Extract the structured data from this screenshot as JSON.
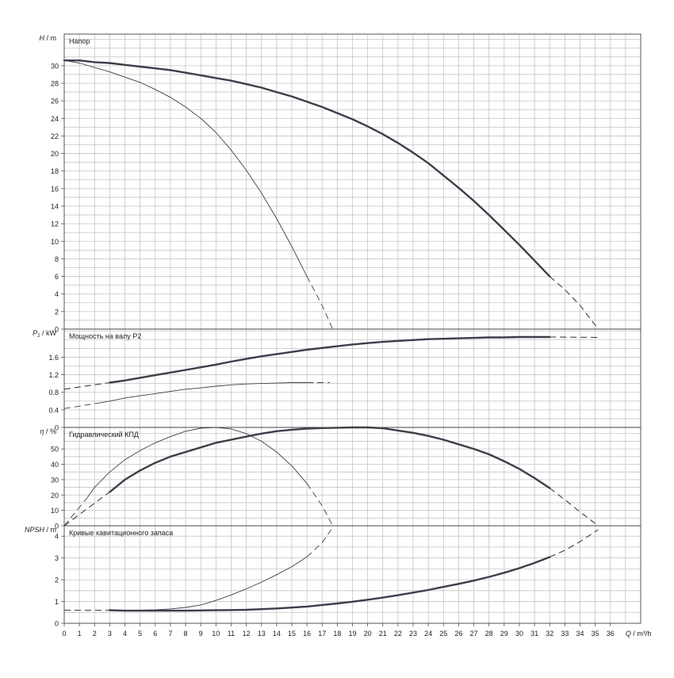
{
  "chart_data": [
    {
      "type": "line",
      "panel": "head",
      "title": "Напор",
      "ylabel_sym": "H",
      "ylabel_unit": "m",
      "ylim": [
        0,
        33.6
      ],
      "yticks": [
        0,
        2,
        4,
        6,
        8,
        10,
        12,
        14,
        16,
        18,
        20,
        22,
        24,
        26,
        28,
        30
      ],
      "series": [
        {
          "weight": "thick",
          "solid": [
            [
              0,
              30.6
            ],
            [
              1,
              30.6
            ],
            [
              2,
              30.4
            ],
            [
              3,
              30.3
            ],
            [
              4,
              30.1
            ],
            [
              5,
              29.9
            ],
            [
              6,
              29.7
            ],
            [
              7,
              29.5
            ],
            [
              8,
              29.2
            ],
            [
              9,
              28.9
            ],
            [
              10,
              28.6
            ],
            [
              11,
              28.3
            ],
            [
              12,
              27.9
            ],
            [
              13,
              27.5
            ],
            [
              14,
              27.0
            ],
            [
              15,
              26.5
            ],
            [
              16,
              25.9
            ],
            [
              17,
              25.3
            ],
            [
              18,
              24.6
            ],
            [
              19,
              23.9
            ],
            [
              20,
              23.1
            ],
            [
              21,
              22.2
            ],
            [
              22,
              21.2
            ],
            [
              23,
              20.1
            ],
            [
              24,
              18.9
            ],
            [
              25,
              17.5
            ],
            [
              26,
              16.1
            ],
            [
              27,
              14.6
            ],
            [
              28,
              13.0
            ],
            [
              29,
              11.3
            ],
            [
              30,
              9.6
            ],
            [
              31,
              7.8
            ],
            [
              32,
              6.0
            ]
          ],
          "dashed": [
            [
              32,
              6.0
            ],
            [
              33,
              4.5
            ],
            [
              34,
              2.7
            ],
            [
              35.2,
              0.0
            ]
          ]
        },
        {
          "weight": "thin",
          "solid": [
            [
              0,
              30.6
            ],
            [
              1,
              30.3
            ],
            [
              2,
              29.8
            ],
            [
              3,
              29.3
            ],
            [
              4,
              28.7
            ],
            [
              5,
              28.1
            ],
            [
              6,
              27.3
            ],
            [
              7,
              26.4
            ],
            [
              8,
              25.3
            ],
            [
              9,
              24.0
            ],
            [
              10,
              22.4
            ],
            [
              11,
              20.4
            ],
            [
              12,
              18.1
            ],
            [
              13,
              15.5
            ],
            [
              14,
              12.6
            ],
            [
              15,
              9.4
            ],
            [
              16,
              6.0
            ]
          ],
          "dashed": [
            [
              16,
              6.0
            ],
            [
              17,
              2.7
            ],
            [
              17.7,
              0.0
            ]
          ]
        }
      ]
    },
    {
      "type": "line",
      "panel": "power",
      "title": "Мощность на валу P2",
      "ylabel_sym": "P",
      "ylabel_sub": "2",
      "ylabel_unit": "kW",
      "ylim": [
        0,
        2.24
      ],
      "yticks": [
        0,
        0.4,
        0.8,
        1.2,
        1.6
      ],
      "ytick_labels": [
        "0",
        "0.4",
        "0.8",
        "1.2",
        "1.6"
      ],
      "series": [
        {
          "weight": "thick",
          "dashed_start": [
            [
              0,
              0.87
            ],
            [
              3,
              1.02
            ]
          ],
          "solid": [
            [
              3,
              1.02
            ],
            [
              4,
              1.07
            ],
            [
              5,
              1.13
            ],
            [
              6,
              1.19
            ],
            [
              7,
              1.25
            ],
            [
              8,
              1.31
            ],
            [
              9,
              1.37
            ],
            [
              10,
              1.43
            ],
            [
              11,
              1.5
            ],
            [
              12,
              1.56
            ],
            [
              13,
              1.62
            ],
            [
              14,
              1.67
            ],
            [
              15,
              1.72
            ],
            [
              16,
              1.77
            ],
            [
              17,
              1.81
            ],
            [
              18,
              1.85
            ],
            [
              19,
              1.89
            ],
            [
              20,
              1.92
            ],
            [
              21,
              1.95
            ],
            [
              22,
              1.97
            ],
            [
              23,
              1.99
            ],
            [
              24,
              2.01
            ],
            [
              25,
              2.02
            ],
            [
              26,
              2.03
            ],
            [
              27,
              2.04
            ],
            [
              28,
              2.05
            ],
            [
              29,
              2.05
            ],
            [
              30,
              2.06
            ],
            [
              31,
              2.06
            ],
            [
              32,
              2.06
            ]
          ],
          "dashed": [
            [
              32,
              2.06
            ],
            [
              35.2,
              2.05
            ]
          ]
        },
        {
          "weight": "thin",
          "dashed_start": [
            [
              0,
              0.43
            ],
            [
              2,
              0.54
            ]
          ],
          "solid": [
            [
              2,
              0.54
            ],
            [
              3,
              0.6
            ],
            [
              4,
              0.67
            ],
            [
              5,
              0.72
            ],
            [
              6,
              0.77
            ],
            [
              7,
              0.82
            ],
            [
              8,
              0.87
            ],
            [
              9,
              0.9
            ],
            [
              10,
              0.94
            ],
            [
              11,
              0.97
            ],
            [
              12,
              0.99
            ],
            [
              13,
              1.0
            ],
            [
              14,
              1.01
            ],
            [
              15,
              1.02
            ],
            [
              16,
              1.02
            ]
          ],
          "dashed": [
            [
              16,
              1.02
            ],
            [
              17.5,
              1.02
            ]
          ]
        }
      ]
    },
    {
      "type": "line",
      "panel": "efficiency",
      "title": "Гидравлический КПД",
      "ylabel_sym": "η",
      "ylabel_unit": "%",
      "ylim": [
        0,
        64
      ],
      "yticks": [
        0,
        10,
        20,
        30,
        40,
        50
      ],
      "series": [
        {
          "weight": "thick",
          "dashed_start": [
            [
              0,
              0
            ],
            [
              3,
              22
            ]
          ],
          "solid": [
            [
              3,
              22
            ],
            [
              4,
              30
            ],
            [
              5,
              36
            ],
            [
              6,
              41
            ],
            [
              7,
              45
            ],
            [
              8,
              48
            ],
            [
              9,
              51
            ],
            [
              10,
              54
            ],
            [
              11,
              56
            ],
            [
              12,
              58
            ],
            [
              13,
              60
            ],
            [
              14,
              61.5
            ],
            [
              15,
              62.5
            ],
            [
              16,
              63.2
            ],
            [
              17,
              63.6
            ],
            [
              18,
              63.8
            ],
            [
              19,
              64
            ],
            [
              20,
              64
            ],
            [
              21,
              63.5
            ],
            [
              22,
              62
            ],
            [
              23,
              60.5
            ],
            [
              24,
              58.5
            ],
            [
              25,
              56
            ],
            [
              26,
              53
            ],
            [
              27,
              50
            ],
            [
              28,
              46.5
            ],
            [
              29,
              42
            ],
            [
              30,
              37
            ],
            [
              31,
              31
            ],
            [
              32,
              24.5
            ]
          ],
          "dashed": [
            [
              32,
              24.5
            ],
            [
              33,
              17
            ],
            [
              34,
              9
            ],
            [
              35.2,
              0
            ]
          ]
        },
        {
          "weight": "thin",
          "dashed_start": [
            [
              0,
              0
            ],
            [
              1.5,
              18
            ]
          ],
          "solid": [
            [
              1.5,
              18
            ],
            [
              2,
              25
            ],
            [
              3,
              35
            ],
            [
              4,
              43
            ],
            [
              5,
              49
            ],
            [
              6,
              54
            ],
            [
              7,
              58
            ],
            [
              8,
              61.5
            ],
            [
              9,
              63.5
            ],
            [
              10,
              64
            ],
            [
              11,
              63
            ],
            [
              12,
              60
            ],
            [
              13,
              55
            ],
            [
              14,
              48
            ],
            [
              15,
              39
            ],
            [
              16,
              27.5
            ]
          ],
          "dashed": [
            [
              16,
              27.5
            ],
            [
              17,
              13
            ],
            [
              17.7,
              0
            ]
          ]
        }
      ]
    },
    {
      "type": "line",
      "panel": "npsh",
      "title": "Кривые кавитационного запаса",
      "ylabel_sym": "NPSH",
      "ylabel_unit": "m",
      "xlabel_sym": "Q",
      "xlabel_unit": "m³/h",
      "xlim": [
        0,
        38
      ],
      "xticks": [
        0,
        1,
        2,
        3,
        4,
        5,
        6,
        7,
        8,
        9,
        10,
        11,
        12,
        13,
        14,
        15,
        16,
        17,
        18,
        19,
        20,
        21,
        22,
        23,
        24,
        25,
        26,
        27,
        28,
        29,
        30,
        31,
        32,
        33,
        34,
        35,
        36
      ],
      "ylim": [
        0,
        4.48
      ],
      "yticks": [
        0,
        1,
        2,
        3,
        4
      ],
      "series": [
        {
          "weight": "thick",
          "dashed_start": [
            [
              0,
              0.6
            ],
            [
              3,
              0.6
            ]
          ],
          "solid": [
            [
              3,
              0.6
            ],
            [
              4,
              0.58
            ],
            [
              5,
              0.58
            ],
            [
              6,
              0.58
            ],
            [
              7,
              0.58
            ],
            [
              8,
              0.58
            ],
            [
              9,
              0.59
            ],
            [
              10,
              0.6
            ],
            [
              11,
              0.61
            ],
            [
              12,
              0.62
            ],
            [
              13,
              0.65
            ],
            [
              14,
              0.68
            ],
            [
              15,
              0.72
            ],
            [
              16,
              0.77
            ],
            [
              17,
              0.84
            ],
            [
              18,
              0.91
            ],
            [
              19,
              0.99
            ],
            [
              20,
              1.08
            ],
            [
              21,
              1.18
            ],
            [
              22,
              1.29
            ],
            [
              23,
              1.41
            ],
            [
              24,
              1.53
            ],
            [
              25,
              1.67
            ],
            [
              26,
              1.81
            ],
            [
              27,
              1.96
            ],
            [
              28,
              2.13
            ],
            [
              29,
              2.32
            ],
            [
              30,
              2.53
            ],
            [
              31,
              2.77
            ],
            [
              32,
              3.04
            ]
          ],
          "dashed": [
            [
              32,
              3.04
            ],
            [
              33,
              3.35
            ],
            [
              34,
              3.75
            ],
            [
              35.2,
              4.3
            ]
          ]
        },
        {
          "weight": "thin",
          "dashed_start": [
            [
              0,
              0.6
            ],
            [
              3,
              0.6
            ]
          ],
          "solid": [
            [
              3,
              0.6
            ],
            [
              4,
              0.6
            ],
            [
              5,
              0.6
            ],
            [
              6,
              0.62
            ],
            [
              7,
              0.66
            ],
            [
              8,
              0.73
            ],
            [
              9,
              0.84
            ],
            [
              10,
              1.05
            ],
            [
              11,
              1.3
            ],
            [
              12,
              1.58
            ],
            [
              13,
              1.89
            ],
            [
              14,
              2.23
            ],
            [
              15,
              2.6
            ],
            [
              16,
              3.05
            ]
          ],
          "dashed": [
            [
              16,
              3.05
            ],
            [
              17,
              3.7
            ],
            [
              17.6,
              4.3
            ]
          ]
        }
      ]
    }
  ]
}
